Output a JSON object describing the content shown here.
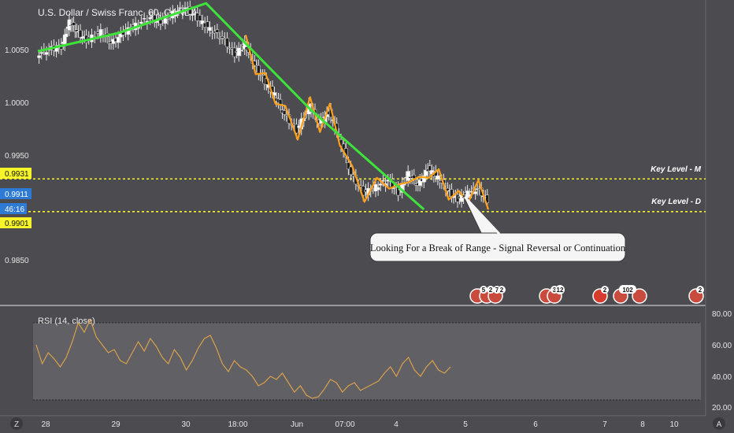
{
  "header": {
    "title": "U.S. Dollar / Swiss Franc, 60, OANDA"
  },
  "colors": {
    "background": "#4b4b50",
    "axis_background": "#4b4b50",
    "candle_up": "#ffffff",
    "candle_down": "#1f1f1f",
    "trend_green": "#3fe23a",
    "pattern_orange": "#ff9f1a",
    "key_level": "#f5f52a",
    "rsi_line": "#d9a04c",
    "rsi_band": "#6a6a6e",
    "price_tag_current": "#2e7bd6",
    "price_tag_level": "#f5f52a",
    "event_red": "#d63b2e"
  },
  "price_axis": {
    "ticks": [
      "1.0050",
      "1.0000",
      "0.9950",
      "0.9850"
    ],
    "tags": {
      "key_m": "0.9931",
      "current": "0.9911",
      "countdown": "46:16",
      "key_d": "0.9901"
    }
  },
  "rsi_axis": {
    "ticks": [
      "80.00",
      "60.00",
      "40.00",
      "20.00"
    ]
  },
  "time_axis": {
    "ticks": [
      "28",
      "29",
      "30",
      "18:00",
      "Jun",
      "07:00",
      "4",
      "5",
      "6",
      "7",
      "8",
      "10"
    ]
  },
  "annotations": {
    "key_level_m": "Key Level - M",
    "key_level_d": "Key Level - D",
    "callout": "Looking For a Break of Range - Signal Reversal or Continuation"
  },
  "rsi_panel": {
    "label": "RSI (14, close)"
  },
  "event_badges": [
    {
      "text": "5"
    },
    {
      "text": "2"
    },
    {
      "text": "7"
    },
    {
      "text": "2"
    },
    {
      "text": "3"
    },
    {
      "text": "12"
    },
    {
      "text": "2"
    },
    {
      "text": "102"
    },
    {
      "text": "2"
    }
  ],
  "corner_icons": {
    "left": "Z",
    "right": "A"
  },
  "chart_data": [
    {
      "type": "candlestick",
      "title": "U.S. Dollar / Swiss Franc, 60, OANDA",
      "ylim": [
        0.9815,
        1.0095
      ],
      "key_levels": [
        {
          "label": "Key Level - M",
          "value": 0.9931
        },
        {
          "label": "Key Level - D",
          "value": 0.9901
        }
      ],
      "current_price": 0.9911,
      "close_path": [
        {
          "t": 0.0,
          "v": 1.0045
        },
        {
          "t": 0.5,
          "v": 1.005
        },
        {
          "t": 1.0,
          "v": 1.0052
        },
        {
          "t": 1.3,
          "v": 1.0075
        },
        {
          "t": 1.6,
          "v": 1.0066
        },
        {
          "t": 2.0,
          "v": 1.0058
        },
        {
          "t": 2.6,
          "v": 1.0066
        },
        {
          "t": 3.0,
          "v": 1.0055
        },
        {
          "t": 3.5,
          "v": 1.0065
        },
        {
          "t": 4.0,
          "v": 1.0072
        },
        {
          "t": 4.6,
          "v": 1.0079
        },
        {
          "t": 5.0,
          "v": 1.0075
        },
        {
          "t": 5.5,
          "v": 1.0083
        },
        {
          "t": 6.0,
          "v": 1.0088
        },
        {
          "t": 6.5,
          "v": 1.0078
        },
        {
          "t": 7.0,
          "v": 1.0068
        },
        {
          "t": 7.5,
          "v": 1.006
        },
        {
          "t": 8.0,
          "v": 1.0045
        },
        {
          "t": 8.4,
          "v": 1.0055
        },
        {
          "t": 8.8,
          "v": 1.0035
        },
        {
          "t": 9.2,
          "v": 1.002
        },
        {
          "t": 9.6,
          "v": 1.0008
        },
        {
          "t": 10.0,
          "v": 0.999
        },
        {
          "t": 10.5,
          "v": 0.9975
        },
        {
          "t": 11.0,
          "v": 0.9998
        },
        {
          "t": 11.4,
          "v": 0.9982
        },
        {
          "t": 11.8,
          "v": 0.9992
        },
        {
          "t": 12.2,
          "v": 0.997
        },
        {
          "t": 12.7,
          "v": 0.9935
        },
        {
          "t": 13.2,
          "v": 0.9918
        },
        {
          "t": 13.7,
          "v": 0.9924
        },
        {
          "t": 14.2,
          "v": 0.993
        },
        {
          "t": 14.6,
          "v": 0.9918
        },
        {
          "t": 15.0,
          "v": 0.9936
        },
        {
          "t": 15.4,
          "v": 0.9925
        },
        {
          "t": 15.8,
          "v": 0.994
        },
        {
          "t": 16.2,
          "v": 0.9932
        },
        {
          "t": 16.6,
          "v": 0.992
        },
        {
          "t": 17.0,
          "v": 0.9912
        },
        {
          "t": 17.4,
          "v": 0.9918
        },
        {
          "t": 17.8,
          "v": 0.9922
        },
        {
          "t": 18.2,
          "v": 0.9911
        }
      ],
      "x_categories": [
        "28",
        "29",
        "30",
        "18:00",
        "Jun",
        "07:00",
        "4",
        "5",
        "6",
        "7",
        "8",
        "10"
      ],
      "green_trendline_points": [
        {
          "t": 0.0,
          "v": 1.0048
        },
        {
          "t": 3.3,
          "v": 1.0065
        },
        {
          "t": 6.8,
          "v": 1.0092
        },
        {
          "t": 11.0,
          "v": 0.9995
        },
        {
          "t": 15.6,
          "v": 0.9903
        }
      ]
    },
    {
      "type": "line",
      "title": "RSI (14, close)",
      "ylim": [
        20,
        80
      ],
      "reference_lines": [
        70,
        30
      ],
      "series": [
        {
          "name": "RSI (14, close)",
          "values": [
            60,
            48,
            55,
            51,
            46,
            52,
            62,
            74,
            68,
            76,
            65,
            60,
            55,
            57,
            50,
            48,
            55,
            62,
            56,
            64,
            59,
            52,
            48,
            57,
            52,
            44,
            50,
            58,
            64,
            66,
            58,
            48,
            43,
            50,
            46,
            44,
            40,
            34,
            36,
            40,
            38,
            42,
            36,
            30,
            34,
            28,
            26,
            27,
            32,
            38,
            36,
            30,
            34,
            36,
            31,
            33,
            35,
            37,
            42,
            46,
            40,
            48,
            52,
            44,
            40,
            46,
            50,
            44,
            42,
            46
          ]
        }
      ]
    }
  ]
}
